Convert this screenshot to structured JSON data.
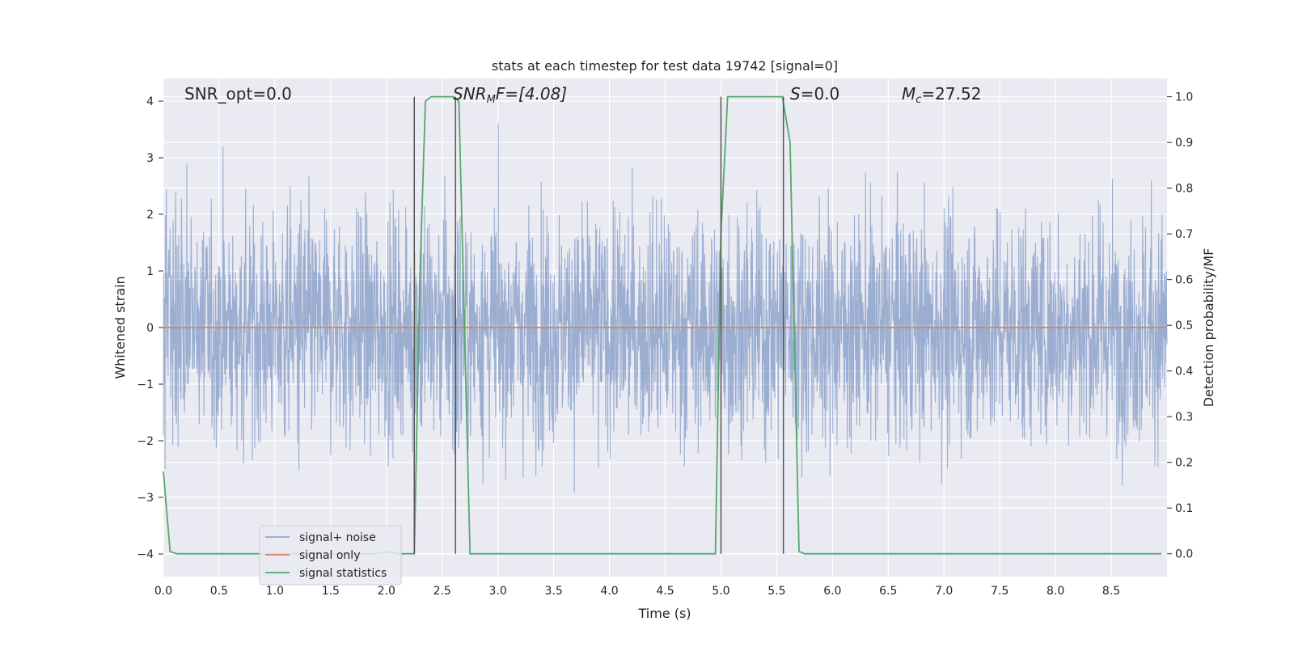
{
  "chart_data": {
    "type": "line",
    "title": "stats at each timestep for test data 19742 [signal=0]",
    "xlabel": "Time (s)",
    "ylabel": "Whitened strain",
    "y2label": "Detection probability/MF",
    "xlim": [
      0.0,
      9.0
    ],
    "ylim": [
      -4.4,
      4.4
    ],
    "y2lim": [
      -0.05,
      1.04
    ],
    "x_ticks": [
      "0.0",
      "0.5",
      "1.0",
      "1.5",
      "2.0",
      "2.5",
      "3.0",
      "3.5",
      "4.0",
      "4.5",
      "5.0",
      "5.5",
      "6.0",
      "6.5",
      "7.0",
      "7.5",
      "8.0",
      "8.5"
    ],
    "y_ticks": [
      "4",
      "3",
      "2",
      "1",
      "0",
      "−1",
      "−2",
      "−3",
      "−4"
    ],
    "y2_ticks": [
      "1.0",
      "0.9",
      "0.8",
      "0.7",
      "0.6",
      "0.5",
      "0.4",
      "0.3",
      "0.2",
      "0.1",
      "0.0"
    ],
    "grid": true,
    "background": "#eaeaf2",
    "legend_position": "lower-left",
    "annotations": {
      "snr_opt": "SNR_opt=0.0",
      "snr_mf_base": "SNR",
      "snr_mf_sub": "M",
      "snr_mf_rest": "F=[4.08]",
      "s_label": "S",
      "s_value": "=0.0",
      "mc_base": "M",
      "mc_sub": "c",
      "mc_value": "=27.52"
    },
    "series": [
      {
        "name": "signal+ noise",
        "color": "#4c72b0",
        "kind": "noise",
        "amplitude_std": 1.0,
        "x_range": [
          0.0,
          9.0
        ]
      },
      {
        "name": "signal only",
        "color": "#dd8452",
        "kind": "line",
        "x": [
          0.0,
          9.0
        ],
        "y": [
          0.0,
          0.0
        ]
      },
      {
        "name": "signal statistics",
        "color": "#55a868",
        "axis": "right",
        "kind": "line",
        "x": [
          0.0,
          0.06,
          0.12,
          0.5,
          1.0,
          1.5,
          1.9,
          2.0,
          2.1,
          2.25,
          2.3,
          2.35,
          2.4,
          2.6,
          2.65,
          2.75,
          3.0,
          4.0,
          4.95,
          5.0,
          5.06,
          5.3,
          5.55,
          5.62,
          5.7,
          5.75,
          6.0,
          7.0,
          8.0,
          8.95
        ],
        "y": [
          0.18,
          0.005,
          0.0,
          0.0,
          0.0,
          0.0,
          0.0,
          0.005,
          0.0,
          0.0,
          0.6,
          0.99,
          1.0,
          1.0,
          0.99,
          0.0,
          0.0,
          0.0,
          0.0,
          0.7,
          1.0,
          1.0,
          1.0,
          0.9,
          0.005,
          0.0,
          0.0,
          0.0,
          0.0,
          0.0
        ]
      }
    ],
    "vlines": {
      "color": "#555555",
      "x": [
        2.25,
        2.62,
        5.0,
        5.56
      ],
      "y_range_right": [
        0.0,
        1.0
      ]
    }
  }
}
